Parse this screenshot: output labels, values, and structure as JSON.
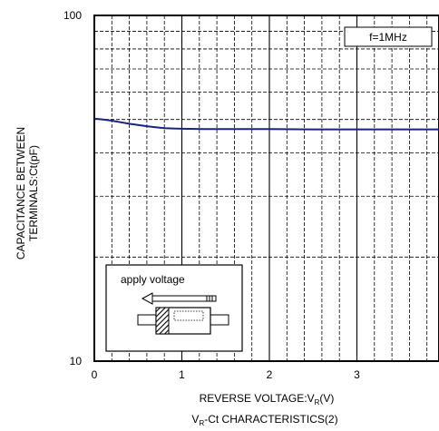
{
  "chart_data": {
    "type": "line",
    "title": "",
    "caption_main": "V",
    "caption_sub": "R",
    "caption_rest": "-Ct CHARACTERISTICS(2)",
    "xlabel_main": "REVERSE VOLTAGE:V",
    "xlabel_sub": "R",
    "xlabel_rest": "(V)",
    "ylabel_line1": "CAPACITANCE BETWEEN",
    "ylabel_line2": "TERMINALS:Ct(pF)",
    "xlim": [
      0,
      4
    ],
    "ylim": [
      10,
      100
    ],
    "y_scale": "log",
    "x_ticks": [
      "0",
      "1",
      "2",
      "3"
    ],
    "y_ticks": [
      "10",
      "100"
    ],
    "grid": true,
    "legend_box": "f=1MHz",
    "inset_label": "apply voltage",
    "series_color": "#1a237e",
    "series": [
      {
        "x": [
          0,
          0.1,
          0.2,
          0.3,
          0.4,
          0.5,
          0.6,
          0.7,
          0.8,
          0.9,
          1.0,
          1.25,
          1.5,
          2.0,
          2.5,
          3.0,
          3.5,
          4.0
        ],
        "y": [
          50.3,
          50.0,
          49.6,
          49.1,
          48.6,
          48.2,
          47.8,
          47.5,
          47.2,
          47.1,
          47.0,
          46.9,
          46.9,
          46.9,
          46.8,
          46.8,
          46.8,
          46.8
        ]
      }
    ]
  }
}
